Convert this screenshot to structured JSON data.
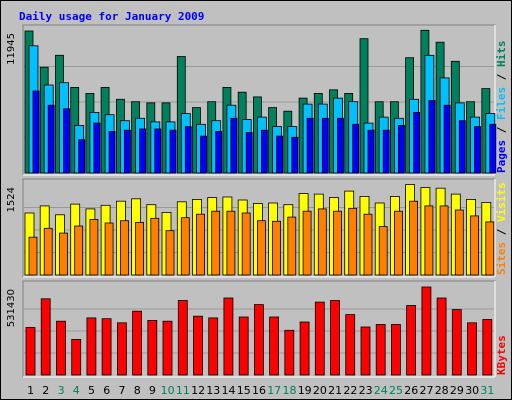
{
  "chart_data": {
    "type": "bar",
    "title": "Daily usage for January 2009",
    "categories": [
      "1",
      "2",
      "3",
      "4",
      "5",
      "6",
      "7",
      "8",
      "9",
      "10",
      "11",
      "12",
      "13",
      "14",
      "15",
      "16",
      "17",
      "18",
      "19",
      "20",
      "21",
      "22",
      "23",
      "24",
      "25",
      "26",
      "27",
      "28",
      "29",
      "30",
      "31"
    ],
    "weekend_days": [
      "3",
      "4",
      "10",
      "11",
      "17",
      "18",
      "24",
      "25",
      "31"
    ],
    "panels": [
      {
        "name": "hits-files-pages",
        "ymax_label": "11945",
        "ylim": [
          0,
          11945
        ],
        "legend": [
          "Pages",
          "Files",
          "Hits"
        ],
        "series": [
          {
            "name": "Hits",
            "color": "#00805c",
            "values": [
              11945,
              8900,
              9900,
              7200,
              6700,
              7200,
              6200,
              6000,
              5900,
              5900,
              9800,
              5500,
              6000,
              7200,
              6800,
              6400,
              5500,
              5200,
              6300,
              6700,
              7000,
              6700,
              11300,
              6000,
              6000,
              9700,
              12000,
              11000,
              9400,
              6000,
              7100
            ]
          },
          {
            "name": "Files",
            "color": "#00c0ff",
            "values": [
              10700,
              7400,
              7600,
              4000,
              5100,
              4900,
              4400,
              4600,
              4300,
              4300,
              5000,
              4100,
              4400,
              5700,
              4500,
              4700,
              3900,
              3900,
              5800,
              5800,
              6300,
              6000,
              4200,
              4700,
              4600,
              6200,
              9900,
              8000,
              5900,
              4700,
              5000
            ]
          },
          {
            "name": "Pages",
            "color": "#0000ff",
            "values": [
              6900,
              5700,
              5400,
              2800,
              4200,
              3500,
              3600,
              3700,
              3700,
              3600,
              3900,
              3100,
              3500,
              4600,
              3400,
              3600,
              3100,
              3000,
              4600,
              4600,
              4600,
              4100,
              3600,
              3600,
              4000,
              5100,
              6100,
              5700,
              4400,
              3900,
              4100
            ]
          }
        ]
      },
      {
        "name": "visits-sites",
        "ymax_label": "1524",
        "ylim": [
          0,
          1524
        ],
        "legend": [
          "Sites",
          "Visits"
        ],
        "series": [
          {
            "name": "Visits",
            "color": "#ffff00",
            "values": [
              1050,
              1170,
              1020,
              1200,
              1120,
              1180,
              1250,
              1290,
              1190,
              1060,
              1240,
              1280,
              1310,
              1320,
              1270,
              1210,
              1220,
              1190,
              1380,
              1370,
              1310,
              1420,
              1330,
              1220,
              1330,
              1530,
              1480,
              1470,
              1370,
              1280,
              1230
            ]
          },
          {
            "name": "Sites",
            "color": "#ff8000",
            "values": [
              640,
              790,
              710,
              830,
              940,
              880,
              920,
              890,
              960,
              750,
              970,
              1030,
              1080,
              1080,
              1050,
              920,
              910,
              980,
              1080,
              1120,
              1080,
              1130,
              1030,
              820,
              1080,
              1250,
              1170,
              1170,
              1100,
              1000,
              900
            ]
          }
        ]
      },
      {
        "name": "kbytes",
        "ymax_label": "531430",
        "ylim": [
          0,
          531430
        ],
        "legend": [
          "KBytes"
        ],
        "series": [
          {
            "name": "KBytes",
            "color": "#ff0000",
            "values": [
              287000,
              460000,
              325000,
              215000,
              345000,
              340000,
              315000,
              385000,
              330000,
              325000,
              450000,
              355000,
              345000,
              465000,
              350000,
              425000,
              350000,
              270000,
              320000,
              440000,
              450000,
              365000,
              290000,
              305000,
              305000,
              420000,
              531430,
              465000,
              395000,
              315000,
              335000
            ]
          }
        ]
      }
    ],
    "grid": true,
    "colors": {
      "background": "#c0c0c0",
      "title": "#0000ff",
      "weekday_label": "#000000",
      "weekend_label": "#00805c",
      "tick_line": "#c00000"
    }
  }
}
